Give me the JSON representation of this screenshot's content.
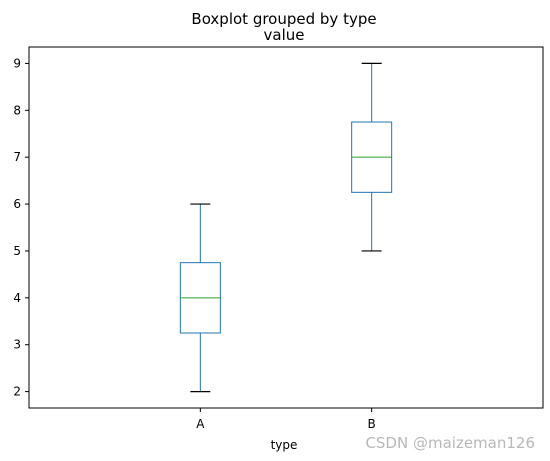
{
  "chart_data": {
    "type": "boxplot",
    "suptitle": "Boxplot grouped by type",
    "title": "value",
    "xlabel": "type",
    "ylabel": "",
    "categories": [
      "A",
      "B"
    ],
    "boxes": [
      {
        "category": "A",
        "whisker_low": 2,
        "q1": 3.25,
        "median": 4,
        "q3": 4.75,
        "whisker_high": 6
      },
      {
        "category": "B",
        "whisker_low": 5,
        "q1": 6.25,
        "median": 7,
        "q3": 7.75,
        "whisker_high": 9
      }
    ],
    "ylim": [
      1.65,
      9.35
    ],
    "yticks": [
      2,
      3,
      4,
      5,
      6,
      7,
      8,
      9
    ],
    "grid": false,
    "colors": {
      "box": "#1f77b4",
      "median": "#2ca02c",
      "cap": "#000000"
    }
  },
  "watermark": "CSDN @maizeman126"
}
